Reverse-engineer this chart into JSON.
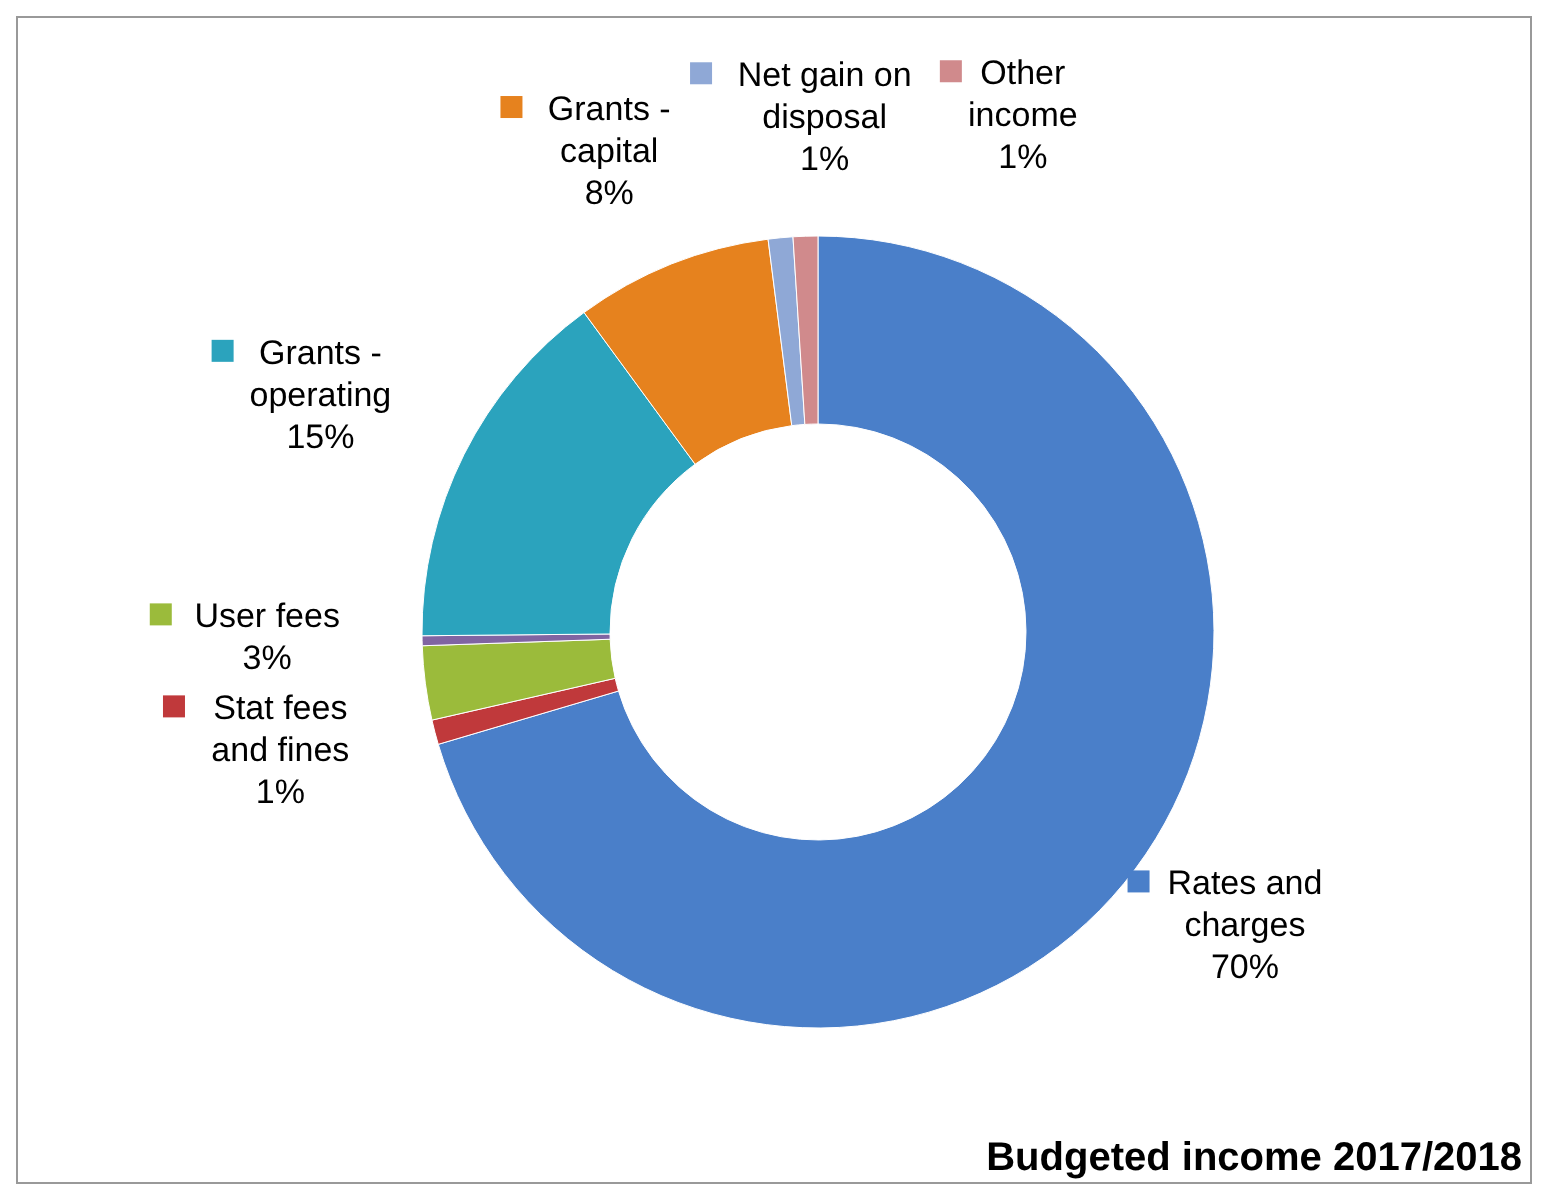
{
  "chart_data": {
    "type": "donut",
    "title": "Budgeted income 2017/2018",
    "categories": [
      "Rates and charges",
      "Stat fees and fines",
      "User fees",
      null,
      "Grants - operating",
      "Grants - capital",
      "Net gain on disposal",
      "Other income"
    ],
    "values": [
      70,
      1,
      3,
      0.4,
      15,
      8,
      1,
      1
    ],
    "colors": [
      "#4a7fc9",
      "#c0393b",
      "#9bbb3b",
      "#8064a2",
      "#2ba3bd",
      "#e6821e",
      "#8fa8d6",
      "#d08a8c"
    ],
    "value_labels": [
      "70%",
      "1%",
      "3%",
      null,
      "15%",
      "8%",
      "1%",
      "1%"
    ],
    "legend": "top left"
  }
}
